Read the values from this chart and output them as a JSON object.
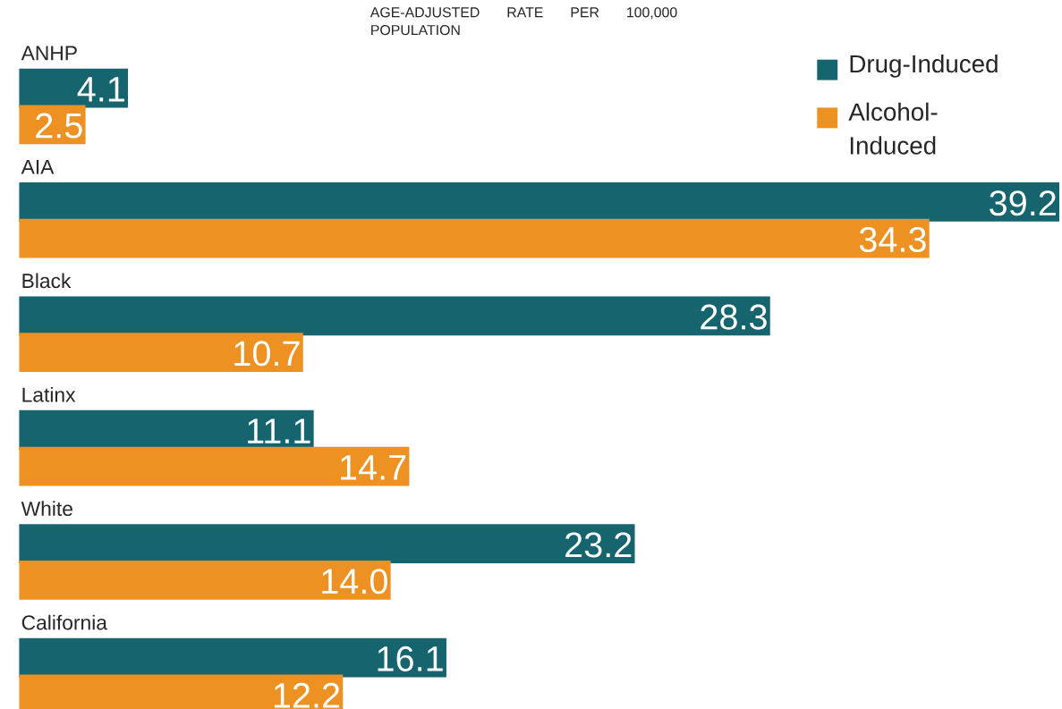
{
  "chart_data": {
    "type": "bar",
    "orientation": "horizontal",
    "title": "AGE-ADJUSTED RATE PER 100,000 POPULATION",
    "categories": [
      "ANHP",
      "AIA",
      "Black",
      "Latinx",
      "White",
      "California"
    ],
    "series": [
      {
        "name": "Drug-Induced",
        "color": "#15646e",
        "values": [
          4.1,
          39.2,
          28.3,
          11.1,
          23.2,
          16.1
        ],
        "value_labels": [
          "4.1",
          "39.2",
          "28.3",
          "11.1",
          "23.2",
          "16.1"
        ]
      },
      {
        "name": "Alcohol-Induced",
        "color": "#ec9122",
        "values": [
          2.5,
          34.3,
          10.7,
          14.7,
          14.0,
          12.2
        ],
        "value_labels": [
          "2.5",
          "34.3",
          "10.7",
          "14.7",
          "14.0",
          "12.2"
        ]
      }
    ],
    "xlim": [
      0,
      39.2
    ],
    "legend": "top right"
  }
}
